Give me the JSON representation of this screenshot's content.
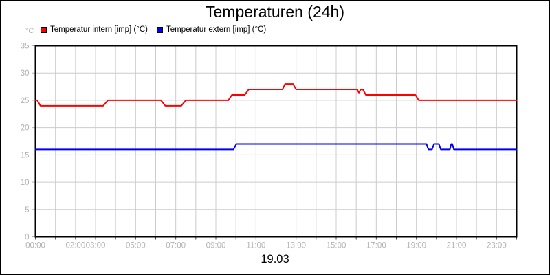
{
  "title": "Temperaturen (24h)",
  "y_axis_unit": "°C",
  "date_label": "19.03",
  "colors": {
    "background": "#ffffff",
    "frame_border": "#000000",
    "grid": "#cccccc",
    "axis": "#000000",
    "tick_label": "#b3b3b3",
    "bottom_tick": "#444444",
    "series_intern": "#ff0000",
    "series_extern": "#0000ee"
  },
  "legend": {
    "items": [
      {
        "label": "Temperatur intern [imp] (°C)",
        "color": "#ff0000"
      },
      {
        "label": "Temperatur extern [imp] (°C)",
        "color": "#0000ee"
      }
    ]
  },
  "chart_data": {
    "type": "line",
    "title": "Temperaturen (24h)",
    "xlabel": "19.03",
    "ylabel": "°C",
    "xlim": [
      0,
      24
    ],
    "ylim": [
      0,
      35
    ],
    "grid": true,
    "legend_position": "top-left",
    "x_gridline_every_hours": 1,
    "y_ticks": [
      0,
      5,
      10,
      15,
      20,
      25,
      30,
      35
    ],
    "x_tick_labels": [
      {
        "hour": 0,
        "label": "00:00"
      },
      {
        "hour": 2,
        "label": "02:00"
      },
      {
        "hour": 3,
        "label": "03:00"
      },
      {
        "hour": 5,
        "label": "05:00"
      },
      {
        "hour": 7,
        "label": "07:00"
      },
      {
        "hour": 9,
        "label": "09:00"
      },
      {
        "hour": 11,
        "label": "11:00"
      },
      {
        "hour": 13,
        "label": "13:00"
      },
      {
        "hour": 15,
        "label": "15:00"
      },
      {
        "hour": 17,
        "label": "17:00"
      },
      {
        "hour": 19,
        "label": "19:00"
      },
      {
        "hour": 21,
        "label": "21:00"
      },
      {
        "hour": 23,
        "label": "23:00"
      }
    ],
    "series": [
      {
        "name": "Temperatur intern [imp] (°C)",
        "color": "#ff0000",
        "points": [
          [
            0,
            25
          ],
          [
            0.09,
            25
          ],
          [
            0.25,
            24
          ],
          [
            3.38,
            24
          ],
          [
            3.62,
            25
          ],
          [
            6.26,
            25
          ],
          [
            6.48,
            24
          ],
          [
            7.28,
            24
          ],
          [
            7.5,
            25
          ],
          [
            9.62,
            25
          ],
          [
            9.8,
            26
          ],
          [
            10.44,
            26
          ],
          [
            10.64,
            27
          ],
          [
            12.33,
            27
          ],
          [
            12.45,
            28
          ],
          [
            12.85,
            28
          ],
          [
            13.0,
            27
          ],
          [
            16.05,
            27
          ],
          [
            16.13,
            26.4
          ],
          [
            16.23,
            27
          ],
          [
            16.33,
            27
          ],
          [
            16.48,
            26
          ],
          [
            18.95,
            26
          ],
          [
            19.12,
            25
          ],
          [
            24,
            25
          ]
        ]
      },
      {
        "name": "Temperatur extern [imp] (°C)",
        "color": "#0000ee",
        "points": [
          [
            0,
            16
          ],
          [
            9.88,
            16
          ],
          [
            10.02,
            17
          ],
          [
            19.5,
            17
          ],
          [
            19.6,
            16
          ],
          [
            19.78,
            16
          ],
          [
            19.88,
            17
          ],
          [
            20.12,
            17
          ],
          [
            20.22,
            16
          ],
          [
            20.67,
            16
          ],
          [
            20.74,
            17
          ],
          [
            20.79,
            17
          ],
          [
            20.87,
            16
          ],
          [
            24,
            16
          ]
        ]
      }
    ]
  }
}
